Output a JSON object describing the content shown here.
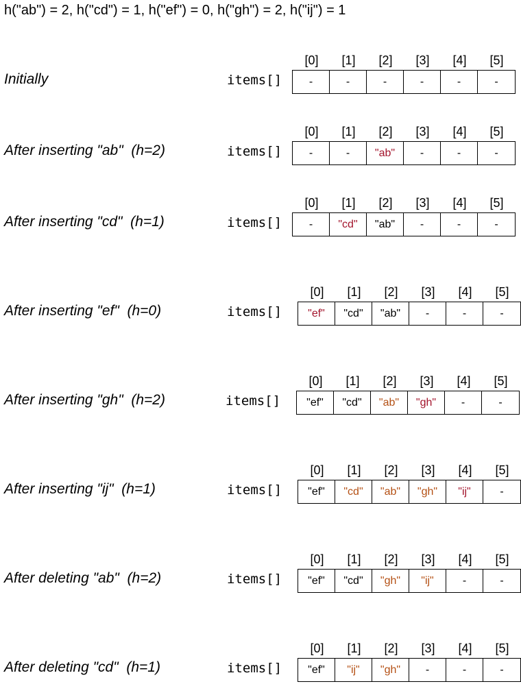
{
  "header": "h(\"ab\") = 2,  h(\"cd\") = 1,  h(\"ef\") = 0,  h(\"gh\") = 2,  h(\"ij\") = 1",
  "array_label": "items[]",
  "indices": [
    "[0]",
    "[1]",
    "[2]",
    "[3]",
    "[4]",
    "[5]"
  ],
  "colors": {
    "new": "#a3142c",
    "moved": "#b45014",
    "default": "#000000"
  },
  "rows": [
    {
      "label": "Initially",
      "cells": [
        {
          "text": "-",
          "style": "black"
        },
        {
          "text": "-",
          "style": "black"
        },
        {
          "text": "-",
          "style": "black"
        },
        {
          "text": "-",
          "style": "black"
        },
        {
          "text": "-",
          "style": "black"
        },
        {
          "text": "-",
          "style": "black"
        }
      ]
    },
    {
      "label": "After inserting \"ab\"  (h=2)",
      "cells": [
        {
          "text": "-",
          "style": "black"
        },
        {
          "text": "-",
          "style": "black"
        },
        {
          "text": "\"ab\"",
          "style": "red"
        },
        {
          "text": "-",
          "style": "black"
        },
        {
          "text": "-",
          "style": "black"
        },
        {
          "text": "-",
          "style": "black"
        }
      ]
    },
    {
      "label": "After inserting \"cd\"  (h=1)",
      "cells": [
        {
          "text": "-",
          "style": "black"
        },
        {
          "text": "\"cd\"",
          "style": "red"
        },
        {
          "text": "\"ab\"",
          "style": "black"
        },
        {
          "text": "-",
          "style": "black"
        },
        {
          "text": "-",
          "style": "black"
        },
        {
          "text": "-",
          "style": "black"
        }
      ]
    },
    {
      "label": "After inserting \"ef\"  (h=0)",
      "cells": [
        {
          "text": "\"ef\"",
          "style": "red"
        },
        {
          "text": "\"cd\"",
          "style": "black"
        },
        {
          "text": "\"ab\"",
          "style": "black"
        },
        {
          "text": "-",
          "style": "black"
        },
        {
          "text": "-",
          "style": "black"
        },
        {
          "text": "-",
          "style": "black"
        }
      ]
    },
    {
      "label": "After inserting \"gh\"  (h=2)",
      "cells": [
        {
          "text": "\"ef\"",
          "style": "black"
        },
        {
          "text": "\"cd\"",
          "style": "black"
        },
        {
          "text": "\"ab\"",
          "style": "orange"
        },
        {
          "text": "\"gh\"",
          "style": "red"
        },
        {
          "text": "-",
          "style": "black"
        },
        {
          "text": "-",
          "style": "black"
        }
      ]
    },
    {
      "label": "After inserting \"ij\"  (h=1)",
      "cells": [
        {
          "text": "\"ef\"",
          "style": "black"
        },
        {
          "text": "\"cd\"",
          "style": "orange"
        },
        {
          "text": "\"ab\"",
          "style": "orange"
        },
        {
          "text": "\"gh\"",
          "style": "orange"
        },
        {
          "text": "\"ij\"",
          "style": "red"
        },
        {
          "text": "-",
          "style": "black"
        }
      ]
    },
    {
      "label": "After deleting \"ab\"  (h=2)",
      "cells": [
        {
          "text": "\"ef\"",
          "style": "black"
        },
        {
          "text": "\"cd\"",
          "style": "black"
        },
        {
          "text": "\"gh\"",
          "style": "orange"
        },
        {
          "text": "\"ij\"",
          "style": "orange"
        },
        {
          "text": "-",
          "style": "black"
        },
        {
          "text": "-",
          "style": "black"
        }
      ]
    },
    {
      "label": "After deleting \"cd\"  (h=1)",
      "cells": [
        {
          "text": "\"ef\"",
          "style": "black"
        },
        {
          "text": "\"ij\"",
          "style": "orange"
        },
        {
          "text": "\"gh\"",
          "style": "orange"
        },
        {
          "text": "-",
          "style": "black"
        },
        {
          "text": "-",
          "style": "black"
        },
        {
          "text": "-",
          "style": "black"
        }
      ]
    }
  ]
}
